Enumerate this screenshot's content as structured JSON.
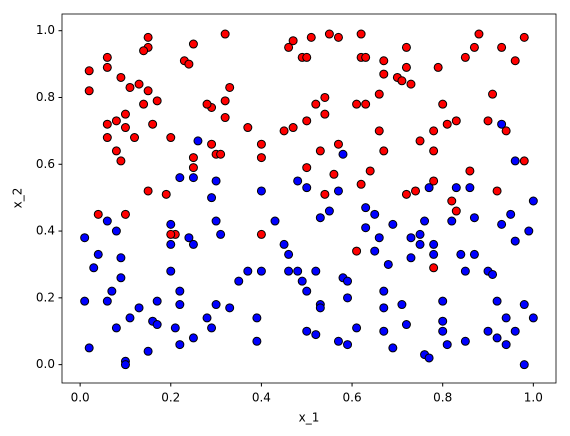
{
  "chart_data": {
    "type": "scatter",
    "xlabel": "x_1",
    "ylabel": "x_2",
    "xlim": [
      -0.04,
      1.05
    ],
    "ylim": [
      -0.055,
      1.05
    ],
    "xticks": [
      {
        "value": 0,
        "label": "0.0"
      },
      0.2,
      0.4,
      0.6,
      0.8,
      {
        "value": 1,
        "label": "1.0"
      }
    ],
    "yticks": [
      {
        "value": 0,
        "label": "0.0"
      },
      0.2,
      0.4,
      0.6,
      0.8,
      {
        "value": 1,
        "label": "1.0"
      }
    ],
    "edgecolor": "#000000",
    "series": [
      {
        "color": "#ff0000",
        "x": [
          0.02,
          0.02,
          0.06,
          0.06,
          0.09,
          0.15,
          0.15,
          0.14,
          0.25,
          0.32,
          0.23,
          0.24,
          0.11,
          0.13,
          0.15,
          0.17,
          0.14,
          0.1,
          0.08,
          0.06,
          0.06,
          0.12,
          0.1,
          0.16,
          0.2,
          0.08,
          0.09,
          0.1,
          0.15,
          0.25,
          0.25,
          0.3,
          0.29,
          0.29,
          0.28,
          0.32,
          0.33,
          0.32,
          0.37,
          0.4,
          0.4,
          0.4,
          0.21,
          0.19,
          0.47,
          0.46,
          0.49,
          0.51,
          0.55,
          0.57,
          0.5,
          0.54,
          0.52,
          0.54,
          0.5,
          0.47,
          0.45,
          0.5,
          0.54,
          0.53,
          0.57,
          0.56,
          0.62,
          0.62,
          0.62,
          0.63,
          0.67,
          0.66,
          0.61,
          0.63,
          0.67,
          0.7,
          0.72,
          0.71,
          0.73,
          0.72,
          0.75,
          0.66,
          0.64,
          0.67,
          0.72,
          0.74,
          0.78,
          0.82,
          0.83,
          0.81,
          0.78,
          0.78,
          0.8,
          0.79,
          0.83,
          0.85,
          0.87,
          0.88,
          0.93,
          0.98,
          0.96,
          0.78,
          0.86,
          0.91,
          0.9,
          0.94,
          0.92,
          0.98,
          0.61,
          0.04,
          0.2,
          0.31
        ],
        "y": [
          0.88,
          0.82,
          0.92,
          0.89,
          0.86,
          0.98,
          0.95,
          0.94,
          0.96,
          0.99,
          0.91,
          0.9,
          0.83,
          0.84,
          0.82,
          0.79,
          0.78,
          0.75,
          0.73,
          0.72,
          0.68,
          0.68,
          0.71,
          0.72,
          0.68,
          0.64,
          0.61,
          0.45,
          0.52,
          0.62,
          0.59,
          0.63,
          0.66,
          0.77,
          0.78,
          0.74,
          0.83,
          0.79,
          0.71,
          0.66,
          0.62,
          0.39,
          0.39,
          0.51,
          0.97,
          0.95,
          0.92,
          0.98,
          0.99,
          0.98,
          0.92,
          0.8,
          0.78,
          0.75,
          0.73,
          0.71,
          0.7,
          0.59,
          0.51,
          0.64,
          0.66,
          0.57,
          0.54,
          0.99,
          0.92,
          0.92,
          0.91,
          0.81,
          0.78,
          0.78,
          0.87,
          0.86,
          0.89,
          0.85,
          0.84,
          0.95,
          0.67,
          0.7,
          0.58,
          0.64,
          0.51,
          0.52,
          0.55,
          0.49,
          0.46,
          0.72,
          0.7,
          0.64,
          0.78,
          0.89,
          0.73,
          0.92,
          0.95,
          0.99,
          0.95,
          0.98,
          0.91,
          0.29,
          0.58,
          0.81,
          0.73,
          0.7,
          0.52,
          0.61,
          0.34,
          0.45,
          0.39,
          0.63
        ]
      },
      {
        "color": "#0000ff",
        "x": [
          0.01,
          0.01,
          0.02,
          0.03,
          0.04,
          0.06,
          0.07,
          0.06,
          0.08,
          0.09,
          0.09,
          0.1,
          0.1,
          0.08,
          0.11,
          0.13,
          0.16,
          0.17,
          0.17,
          0.15,
          0.2,
          0.2,
          0.2,
          0.22,
          0.22,
          0.21,
          0.22,
          0.24,
          0.25,
          0.25,
          0.28,
          0.29,
          0.3,
          0.33,
          0.26,
          0.22,
          0.25,
          0.29,
          0.3,
          0.3,
          0.31,
          0.35,
          0.37,
          0.39,
          0.4,
          0.39,
          0.4,
          0.43,
          0.45,
          0.46,
          0.46,
          0.48,
          0.48,
          0.49,
          0.5,
          0.5,
          0.52,
          0.53,
          0.5,
          0.52,
          0.53,
          0.53,
          0.55,
          0.57,
          0.58,
          0.58,
          0.59,
          0.59,
          0.57,
          0.59,
          0.61,
          0.63,
          0.63,
          0.65,
          0.65,
          0.67,
          0.68,
          0.67,
          0.67,
          0.66,
          0.69,
          0.69,
          0.73,
          0.71,
          0.72,
          0.73,
          0.75,
          0.75,
          0.76,
          0.77,
          0.78,
          0.78,
          0.76,
          0.77,
          0.8,
          0.8,
          0.8,
          0.81,
          0.82,
          0.83,
          0.85,
          0.84,
          0.85,
          0.86,
          0.87,
          0.87,
          0.9,
          0.92,
          0.91,
          0.9,
          0.92,
          0.94,
          0.93,
          0.93,
          0.94,
          0.96,
          0.96,
          0.95,
          0.96,
          0.98,
          0.98,
          0.99,
          1.0,
          1.0
        ],
        "y": [
          0.38,
          0.19,
          0.05,
          0.29,
          0.33,
          0.43,
          0.22,
          0.19,
          0.11,
          0.32,
          0.26,
          0.01,
          0.0,
          0.4,
          0.14,
          0.17,
          0.13,
          0.12,
          0.19,
          0.04,
          0.36,
          0.42,
          0.28,
          0.22,
          0.18,
          0.11,
          0.06,
          0.38,
          0.08,
          0.36,
          0.14,
          0.11,
          0.18,
          0.17,
          0.67,
          0.56,
          0.56,
          0.5,
          0.55,
          0.43,
          0.39,
          0.25,
          0.28,
          0.14,
          0.28,
          0.07,
          0.52,
          0.43,
          0.36,
          0.28,
          0.33,
          0.28,
          0.55,
          0.25,
          0.22,
          0.53,
          0.28,
          0.18,
          0.1,
          0.09,
          0.17,
          0.44,
          0.46,
          0.52,
          0.63,
          0.26,
          0.25,
          0.2,
          0.07,
          0.06,
          0.11,
          0.47,
          0.41,
          0.45,
          0.34,
          0.22,
          0.3,
          0.1,
          0.17,
          0.38,
          0.05,
          0.42,
          0.32,
          0.18,
          0.12,
          0.38,
          0.39,
          0.36,
          0.43,
          0.53,
          0.36,
          0.33,
          0.03,
          0.02,
          0.19,
          0.1,
          0.13,
          0.06,
          0.43,
          0.53,
          0.07,
          0.33,
          0.28,
          0.53,
          0.44,
          0.33,
          0.28,
          0.19,
          0.27,
          0.1,
          0.08,
          0.14,
          0.42,
          0.72,
          0.06,
          0.1,
          0.37,
          0.45,
          0.61,
          0.0,
          0.18,
          0.4,
          0.14,
          0.49
        ]
      }
    ]
  }
}
